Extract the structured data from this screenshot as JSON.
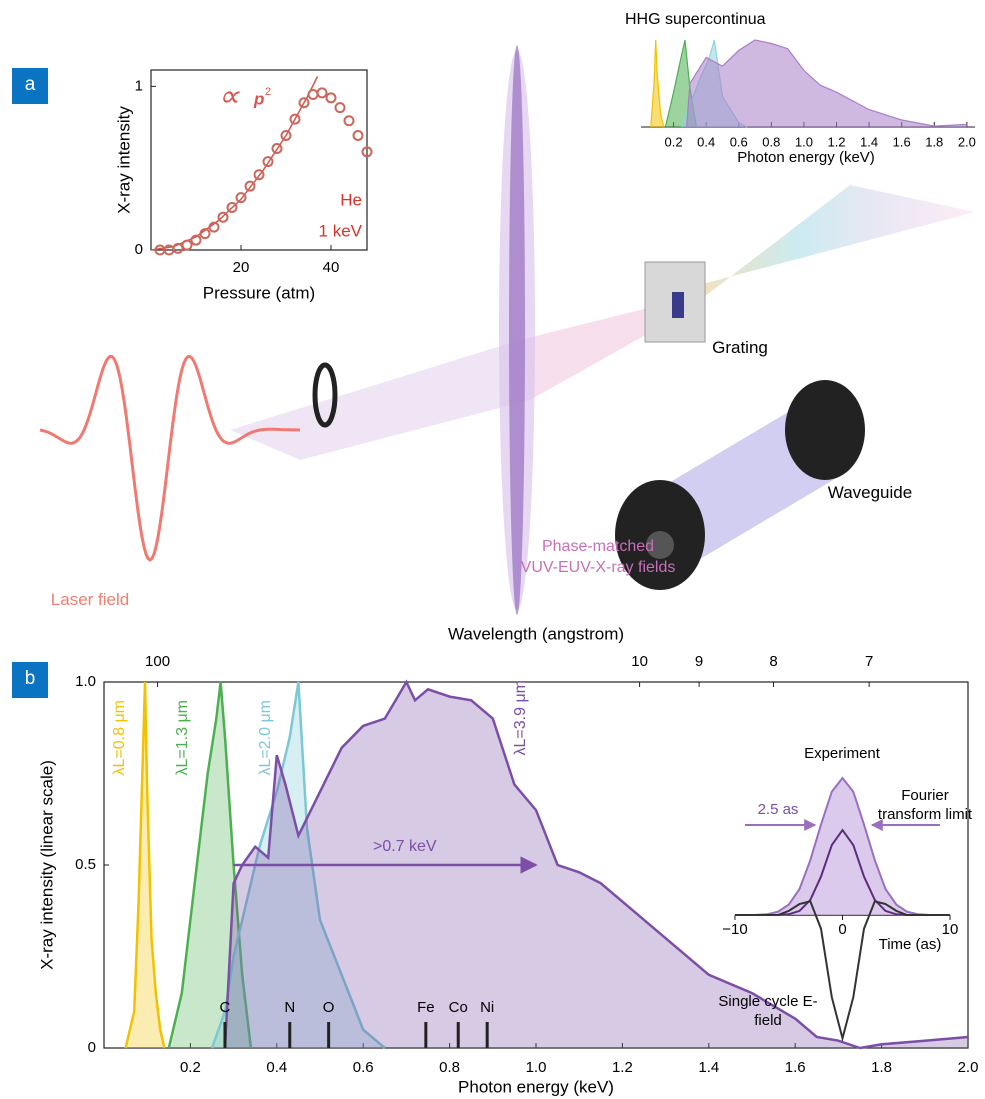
{
  "diagram": {
    "panel_a": "a",
    "panel_b": "b",
    "laser_field": "Laser field",
    "phase_matched": [
      "Phase-matched",
      "VUV-EUV-X-ray fields"
    ],
    "grating": "Grating",
    "waveguide": "Waveguide"
  },
  "chart_data": [
    {
      "type": "scatter",
      "xlabel": "Pressure (atm)",
      "ylabel": "X-ray intensity",
      "xlim": [
        0,
        48
      ],
      "ylim": [
        0,
        1.1
      ],
      "xticks": [
        20,
        40
      ],
      "yticks": [
        0,
        1
      ],
      "color": "#c9675a",
      "x": [
        2,
        4,
        6,
        8,
        10,
        12,
        14,
        16,
        18,
        20,
        22,
        24,
        26,
        28,
        30,
        32,
        34,
        36,
        38,
        40,
        42,
        44,
        46,
        48
      ],
      "values": [
        0,
        0,
        0.01,
        0.03,
        0.06,
        0.1,
        0.14,
        0.2,
        0.26,
        0.32,
        0.39,
        0.46,
        0.54,
        0.62,
        0.7,
        0.8,
        0.9,
        0.95,
        0.96,
        0.93,
        0.87,
        0.79,
        0.7,
        0.6
      ],
      "fit": {
        "color": "#d9534f",
        "x": [
          0,
          5,
          10,
          15,
          20,
          25,
          30,
          35,
          37
        ],
        "values": [
          0,
          0.02,
          0.08,
          0.18,
          0.31,
          0.49,
          0.7,
          0.95,
          1.06
        ]
      },
      "legend": {
        "symbol": "∝",
        "text": "p",
        "superscript": "2"
      },
      "annotations": [
        "He",
        "1 keV"
      ]
    },
    {
      "type": "area",
      "title": "HHG supercontinua",
      "xlabel": "Photon energy (keV)",
      "xlim": [
        0,
        2.05
      ],
      "ylim": [
        0,
        1
      ],
      "xticks": [
        0.2,
        0.4,
        0.6,
        0.8,
        {
          "value": 1,
          "label": "1.0"
        },
        1.2,
        1.4,
        1.6,
        1.8,
        {
          "value": 2,
          "label": "2.0"
        }
      ],
      "series": [
        {
          "color": "#f2c200",
          "x": [
            0.06,
            0.08,
            0.09,
            0.1,
            0.12,
            0.14
          ],
          "values": [
            0,
            0.5,
            1.0,
            0.6,
            0.15,
            0
          ]
        },
        {
          "color": "#4caf50",
          "x": [
            0.15,
            0.2,
            0.24,
            0.27,
            0.3,
            0.34
          ],
          "values": [
            0,
            0.4,
            0.75,
            1.0,
            0.45,
            0
          ]
        },
        {
          "color": "#8fd3dc",
          "x": [
            0.25,
            0.3,
            0.36,
            0.42,
            0.45,
            0.5,
            0.6,
            0.65
          ],
          "values": [
            0,
            0.25,
            0.55,
            0.8,
            1.0,
            0.35,
            0.05,
            0
          ]
        },
        {
          "color": "#a97fc8",
          "x": [
            0.28,
            0.3,
            0.4,
            0.5,
            0.6,
            0.7,
            0.8,
            0.9,
            1.0,
            1.1,
            1.2,
            1.4,
            1.6,
            1.8,
            2.0
          ],
          "values": [
            0,
            0.5,
            0.8,
            0.7,
            0.88,
            1.0,
            0.96,
            0.9,
            0.65,
            0.48,
            0.4,
            0.2,
            0.08,
            0.01,
            0.03
          ]
        }
      ]
    },
    {
      "type": "area",
      "xlabel": "Photon energy (keV)",
      "ylabel": "X-ray intensity (linear scale)",
      "x2label": "Wavelength (angstrom)",
      "xlim": [
        0,
        2
      ],
      "ylim": [
        0,
        1
      ],
      "xticks": [
        0.2,
        0.4,
        0.6,
        0.8,
        {
          "value": 1,
          "label": "1.0"
        },
        1.2,
        1.4,
        1.6,
        1.8,
        {
          "value": 2,
          "label": "2.0"
        }
      ],
      "yticks": [
        0,
        0.5,
        {
          "value": 1,
          "label": "1.0"
        }
      ],
      "x2ticks": [
        100,
        10,
        9,
        8,
        7
      ],
      "series": [
        {
          "name": "λL=0.8 μm",
          "color": "#f2c200",
          "x": [
            0.05,
            0.07,
            0.08,
            0.09,
            0.095,
            0.1,
            0.11,
            0.12,
            0.13,
            0.14
          ],
          "values": [
            0,
            0.1,
            0.4,
            0.8,
            1.0,
            0.7,
            0.3,
            0.15,
            0.05,
            0
          ]
        },
        {
          "name": "λL=1.3 μm",
          "color": "#4caf50",
          "x": [
            0.15,
            0.18,
            0.2,
            0.22,
            0.24,
            0.26,
            0.27,
            0.28,
            0.3,
            0.32,
            0.34
          ],
          "values": [
            0,
            0.15,
            0.35,
            0.55,
            0.75,
            0.9,
            1.0,
            0.85,
            0.5,
            0.2,
            0
          ]
        },
        {
          "name": "λL=2.0 μm",
          "color": "#7cc8d4",
          "x": [
            0.25,
            0.28,
            0.3,
            0.33,
            0.36,
            0.4,
            0.43,
            0.45,
            0.47,
            0.5,
            0.55,
            0.6,
            0.65
          ],
          "values": [
            0,
            0.1,
            0.25,
            0.4,
            0.55,
            0.7,
            0.85,
            1.0,
            0.6,
            0.35,
            0.2,
            0.05,
            0
          ]
        },
        {
          "name": "λL=3.9 μm",
          "color": "#7b4fa6",
          "x": [
            0.28,
            0.3,
            0.32,
            0.35,
            0.38,
            0.4,
            0.42,
            0.45,
            0.5,
            0.55,
            0.6,
            0.65,
            0.7,
            0.72,
            0.75,
            0.8,
            0.85,
            0.9,
            0.95,
            1.0,
            1.05,
            1.1,
            1.15,
            1.2,
            1.3,
            1.4,
            1.5,
            1.6,
            1.65,
            1.7,
            1.75,
            1.8,
            1.9,
            2.0
          ],
          "values": [
            0,
            0.45,
            0.5,
            0.55,
            0.52,
            0.8,
            0.72,
            0.58,
            0.7,
            0.82,
            0.88,
            0.9,
            1.0,
            0.95,
            0.98,
            0.96,
            0.95,
            0.9,
            0.72,
            0.65,
            0.5,
            0.48,
            0.45,
            0.4,
            0.3,
            0.2,
            0.15,
            0.08,
            0.03,
            0.02,
            0,
            0.01,
            0.02,
            0.03
          ]
        }
      ],
      "markers": {
        "labels": [
          "C",
          "N",
          "O",
          "Fe",
          "Co",
          "Ni"
        ],
        "x": [
          0.28,
          0.43,
          0.52,
          0.745,
          0.82,
          0.887
        ]
      },
      "arrow": {
        "text": ">0.7 keV",
        "from": 0.3,
        "to": 1.0,
        "y": 0.5
      }
    },
    {
      "type": "pulse",
      "xlabel": "Time (as)",
      "xlim": [
        -10,
        10
      ],
      "ylim": [
        -1,
        1
      ],
      "xticks": [
        {
          "value": -10,
          "label": "−10"
        },
        0,
        10
      ],
      "x": [
        -10,
        -9,
        -8,
        -7,
        -6,
        -5,
        -4,
        -3,
        -2,
        -1,
        0,
        1,
        2,
        3,
        4,
        5,
        6,
        7,
        8,
        9,
        10
      ],
      "series": [
        {
          "name": "Experiment",
          "color": "#9a6fc0",
          "values": [
            0,
            0,
            0.001,
            0.006,
            0.024,
            0.076,
            0.19,
            0.4,
            0.66,
            0.9,
            1,
            0.9,
            0.66,
            0.4,
            0.19,
            0.076,
            0.024,
            0.006,
            0.001,
            0,
            0
          ]
        },
        {
          "name": "Fourier transform limit",
          "color": "#5c2d7f",
          "values": [
            0,
            0,
            0,
            0,
            0,
            0.005,
            0.03,
            0.11,
            0.28,
            0.51,
            0.62,
            0.51,
            0.28,
            0.11,
            0.03,
            0.005,
            0,
            0,
            0,
            0,
            0
          ]
        },
        {
          "name": "Single cycle E-field",
          "color": "#333333",
          "values": [
            0,
            0,
            0,
            0,
            0,
            0.03,
            0.08,
            0.1,
            -0.1,
            -0.6,
            -0.9,
            -0.6,
            -0.1,
            0.1,
            0.08,
            0.03,
            0,
            0,
            0,
            0,
            0
          ]
        }
      ],
      "annotation": "2.5 as"
    }
  ]
}
